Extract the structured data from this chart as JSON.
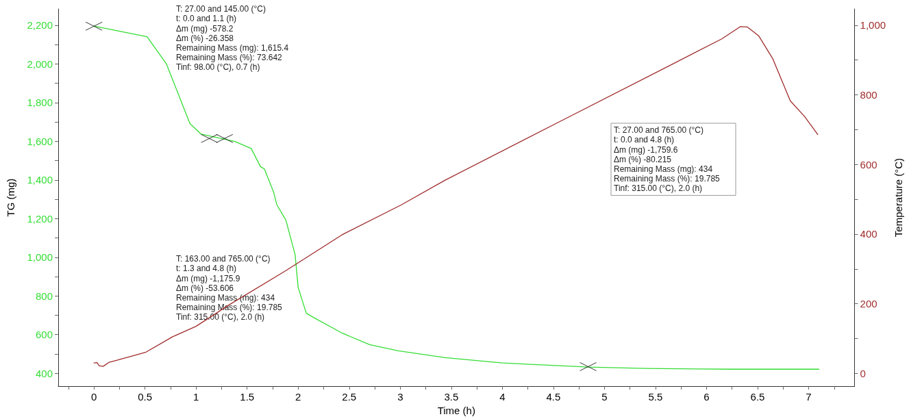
{
  "chart_data": {
    "type": "line",
    "xlabel": "Time (h)",
    "ylabel": "TG (mg)",
    "y2label": "Temperature (°C)",
    "xlim": [
      -0.35,
      7.45
    ],
    "xticks": [
      {
        "value": -0.25,
        "label": null
      },
      0,
      {
        "value": 0.25,
        "label": null
      },
      0.5,
      {
        "value": 0.75,
        "label": null
      },
      1,
      {
        "value": 1.25,
        "label": null
      },
      1.5,
      {
        "value": 1.75,
        "label": null
      },
      2,
      {
        "value": 2.25,
        "label": null
      },
      2.5,
      {
        "value": 2.75,
        "label": null
      },
      3,
      {
        "value": 3.25,
        "label": null
      },
      3.5,
      {
        "value": 3.75,
        "label": null
      },
      4,
      {
        "value": 4.25,
        "label": null
      },
      4.5,
      {
        "value": 4.75,
        "label": null
      },
      5,
      {
        "value": 5.25,
        "label": null
      },
      5.5,
      {
        "value": 5.75,
        "label": null
      },
      6,
      {
        "value": 6.25,
        "label": null
      },
      6.5,
      {
        "value": 6.75,
        "label": null
      },
      7,
      {
        "value": 7.25,
        "label": null
      }
    ],
    "ylim": [
      333,
      2285
    ],
    "yticks": [
      400,
      {
        "value": 500,
        "label": null
      },
      600,
      {
        "value": 700,
        "label": null
      },
      800,
      {
        "value": 900,
        "label": null
      },
      {
        "value": 1000,
        "label": "1,000"
      },
      {
        "value": 1100,
        "label": null
      },
      {
        "value": 1200,
        "label": "1,200"
      },
      {
        "value": 1300,
        "label": null
      },
      {
        "value": 1400,
        "label": "1,400"
      },
      {
        "value": 1500,
        "label": null
      },
      {
        "value": 1600,
        "label": "1,600"
      },
      {
        "value": 1700,
        "label": null
      },
      {
        "value": 1800,
        "label": "1,800"
      },
      {
        "value": 1900,
        "label": null
      },
      {
        "value": 2000,
        "label": "2,000"
      },
      {
        "value": 2100,
        "label": null
      },
      {
        "value": 2200,
        "label": "2,200"
      }
    ],
    "y2lim": [
      -37,
      1047
    ],
    "y2ticks": [
      0,
      {
        "value": 100,
        "label": null
      },
      200,
      {
        "value": 300,
        "label": null
      },
      400,
      {
        "value": 500,
        "label": null
      },
      600,
      {
        "value": 700,
        "label": null
      },
      800,
      {
        "value": 900,
        "label": null
      },
      {
        "value": 1000,
        "label": "1,000"
      }
    ],
    "grid": false,
    "marker": "none",
    "line_style": "solid",
    "series": [
      {
        "color": "#33dd33",
        "x": [
          0,
          0.52,
          0.71,
          0.85,
          0.94,
          1.05,
          1.21,
          1.38,
          1.54,
          1.63,
          1.67,
          1.76,
          1.79,
          1.88,
          1.97,
          2.0,
          2.08,
          2.15,
          2.43,
          2.7,
          2.98,
          3.44,
          4.0,
          4.56,
          4.84,
          5.4,
          6.23,
          7.1
        ],
        "values": [
          2196,
          2141,
          2000,
          1812,
          1692,
          1637,
          1619,
          1599,
          1563,
          1470,
          1456,
          1337,
          1273,
          1192,
          1014,
          844,
          710,
          689,
          608,
          548,
          516,
          481,
          453,
          439,
          432,
          425,
          421,
          421
        ]
      },
      {
        "color": "#a02c2c",
        "axis": "y2",
        "x": [
          0,
          0.03,
          0.05,
          0.09,
          0.15,
          0.22,
          0.51,
          0.77,
          1.0,
          1.32,
          1.88,
          2.43,
          3.01,
          3.44,
          4.56,
          5.67,
          6.15,
          6.33,
          6.4,
          6.51,
          6.65,
          6.82,
          6.96,
          7.09
        ],
        "values": [
          30,
          31,
          22,
          20,
          32,
          37,
          61,
          105,
          135,
          196,
          295,
          398,
          484,
          555,
          723,
          889,
          961,
          996,
          995,
          970,
          903,
          783,
          738,
          686
        ]
      },
      {
        "type": "scatter",
        "marker": "cross",
        "color": "#000000",
        "x": [
          0,
          1.13,
          1.28,
          4.84
        ],
        "values": [
          2196,
          1615,
          1615,
          434
        ]
      }
    ],
    "annotations": [
      "T: 27.00 and 145.00 (°C)\nt: 0.0 and 1.1 (h)\nΔm (mg) -578.2\nΔm (%) -26.358\nRemaining Mass (mg): 1,615.4\nRemaining Mass (%): 73.642\nTinf: 98.00 (°C), 0.7 (h)",
      "T: 163.00 and 765.00 (°C)\nt: 1.3 and 4.8 (h)\nΔm (mg) -1,175.9\nΔm (%) -53.606\nRemaining Mass (mg): 434\nRemaining Mass (%): 19.785\nTinf: 315.00 (°C), 2.0 (h)",
      "T: 27.00 and 765.00 (°C)\nt: 0.0 and 4.8 (h)\nΔm (mg) -1,759.6\nΔm (%) -80.215\nRemaining Mass (mg): 434\nRemaining Mass (%): 19.785\nTinf: 315.00 (°C), 2.0 (h)"
    ]
  }
}
